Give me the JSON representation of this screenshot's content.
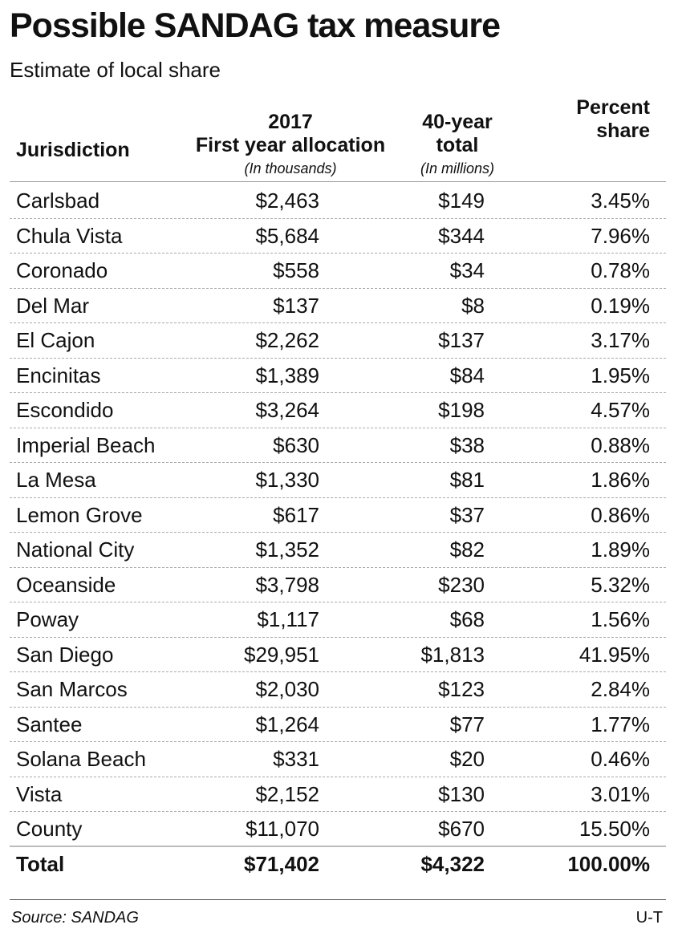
{
  "title": "Possible SANDAG tax measure",
  "subtitle": "Estimate of local share",
  "headers": {
    "jurisdiction": "Jurisdiction",
    "allocation_line1": "2017",
    "allocation_line2": "First year allocation",
    "allocation_unit": "(In thousands)",
    "total_line1": "40-year",
    "total_line2": "total",
    "total_unit": "(In millions)",
    "share_line1": "Percent",
    "share_line2": "share"
  },
  "totals": {
    "label": "Total",
    "allocation": "$71,402",
    "forty_year": "$4,322",
    "share": "100.00%"
  },
  "source": "Source: SANDAG",
  "credit": "U-T",
  "chart_data": {
    "type": "table",
    "title": "Possible SANDAG tax measure",
    "subtitle": "Estimate of local share",
    "columns": [
      "Jurisdiction",
      "2017 First year allocation (In thousands)",
      "40-year total (In millions)",
      "Percent share"
    ],
    "rows": [
      {
        "jurisdiction": "Carlsbad",
        "allocation": "$2,463",
        "forty_year": "$149",
        "share": "3.45%"
      },
      {
        "jurisdiction": "Chula Vista",
        "allocation": "$5,684",
        "forty_year": "$344",
        "share": "7.96%"
      },
      {
        "jurisdiction": "Coronado",
        "allocation": "$558",
        "forty_year": "$34",
        "share": "0.78%"
      },
      {
        "jurisdiction": "Del Mar",
        "allocation": "$137",
        "forty_year": "$8",
        "share": "0.19%"
      },
      {
        "jurisdiction": "El Cajon",
        "allocation": "$2,262",
        "forty_year": "$137",
        "share": "3.17%"
      },
      {
        "jurisdiction": "Encinitas",
        "allocation": "$1,389",
        "forty_year": "$84",
        "share": "1.95%"
      },
      {
        "jurisdiction": "Escondido",
        "allocation": "$3,264",
        "forty_year": "$198",
        "share": "4.57%"
      },
      {
        "jurisdiction": "Imperial Beach",
        "allocation": "$630",
        "forty_year": "$38",
        "share": "0.88%"
      },
      {
        "jurisdiction": "La Mesa",
        "allocation": "$1,330",
        "forty_year": "$81",
        "share": "1.86%"
      },
      {
        "jurisdiction": "Lemon Grove",
        "allocation": "$617",
        "forty_year": "$37",
        "share": "0.86%"
      },
      {
        "jurisdiction": "National City",
        "allocation": "$1,352",
        "forty_year": "$82",
        "share": "1.89%"
      },
      {
        "jurisdiction": "Oceanside",
        "allocation": "$3,798",
        "forty_year": "$230",
        "share": "5.32%"
      },
      {
        "jurisdiction": "Poway",
        "allocation": "$1,117",
        "forty_year": "$68",
        "share": "1.56%"
      },
      {
        "jurisdiction": "San Diego",
        "allocation": "$29,951",
        "forty_year": "$1,813",
        "share": "41.95%"
      },
      {
        "jurisdiction": "San Marcos",
        "allocation": "$2,030",
        "forty_year": "$123",
        "share": "2.84%"
      },
      {
        "jurisdiction": "Santee",
        "allocation": "$1,264",
        "forty_year": "$77",
        "share": "1.77%"
      },
      {
        "jurisdiction": "Solana Beach",
        "allocation": "$331",
        "forty_year": "$20",
        "share": "0.46%"
      },
      {
        "jurisdiction": "Vista",
        "allocation": "$2,152",
        "forty_year": "$130",
        "share": "3.01%"
      },
      {
        "jurisdiction": "County",
        "allocation": "$11,070",
        "forty_year": "$670",
        "share": "15.50%"
      }
    ]
  }
}
